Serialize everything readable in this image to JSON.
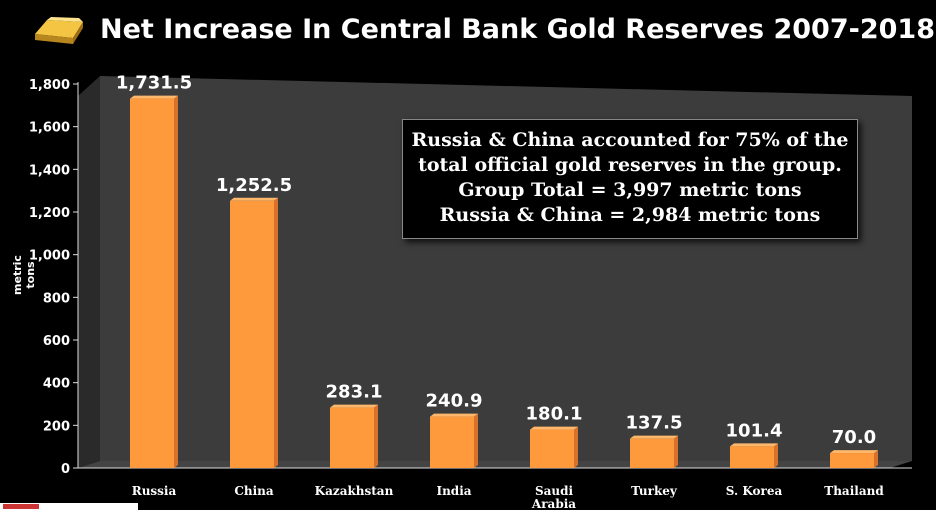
{
  "title": "Net Increase In Central Bank Gold Reserves 2007-2018",
  "colors": {
    "bar": "#FF9A3C",
    "bar_dark": "#D9712A",
    "plot_bg": "#3a3a3a"
  },
  "annotation": {
    "line1": "Russia & China accounted for 75% of the",
    "line2": "total official gold reserves in the group.",
    "line3": "Group Total = 3,997 metric tons",
    "line4": "Russia & China = 2,984 metric tons"
  },
  "chart_data": {
    "type": "bar",
    "title": "Net Increase In Central Bank Gold Reserves 2007-2018",
    "xlabel": "",
    "ylabel": "metric tons",
    "ylim": [
      0,
      1800
    ],
    "yticks": [
      "0",
      "200",
      "400",
      "600",
      "800",
      "1,000",
      "1,200",
      "1,400",
      "1,600",
      "1,800"
    ],
    "categories": [
      "Russia",
      "China",
      "Kazakhstan",
      "India",
      "Saudi Arabia",
      "Turkey",
      "S. Korea",
      "Thailand"
    ],
    "values": [
      1731.5,
      1252.5,
      283.1,
      240.9,
      180.1,
      137.5,
      101.4,
      70.0
    ],
    "value_labels": [
      "1,731.5",
      "1,252.5",
      "283.1",
      "240.9",
      "180.1",
      "137.5",
      "101.4",
      "70.0"
    ]
  }
}
